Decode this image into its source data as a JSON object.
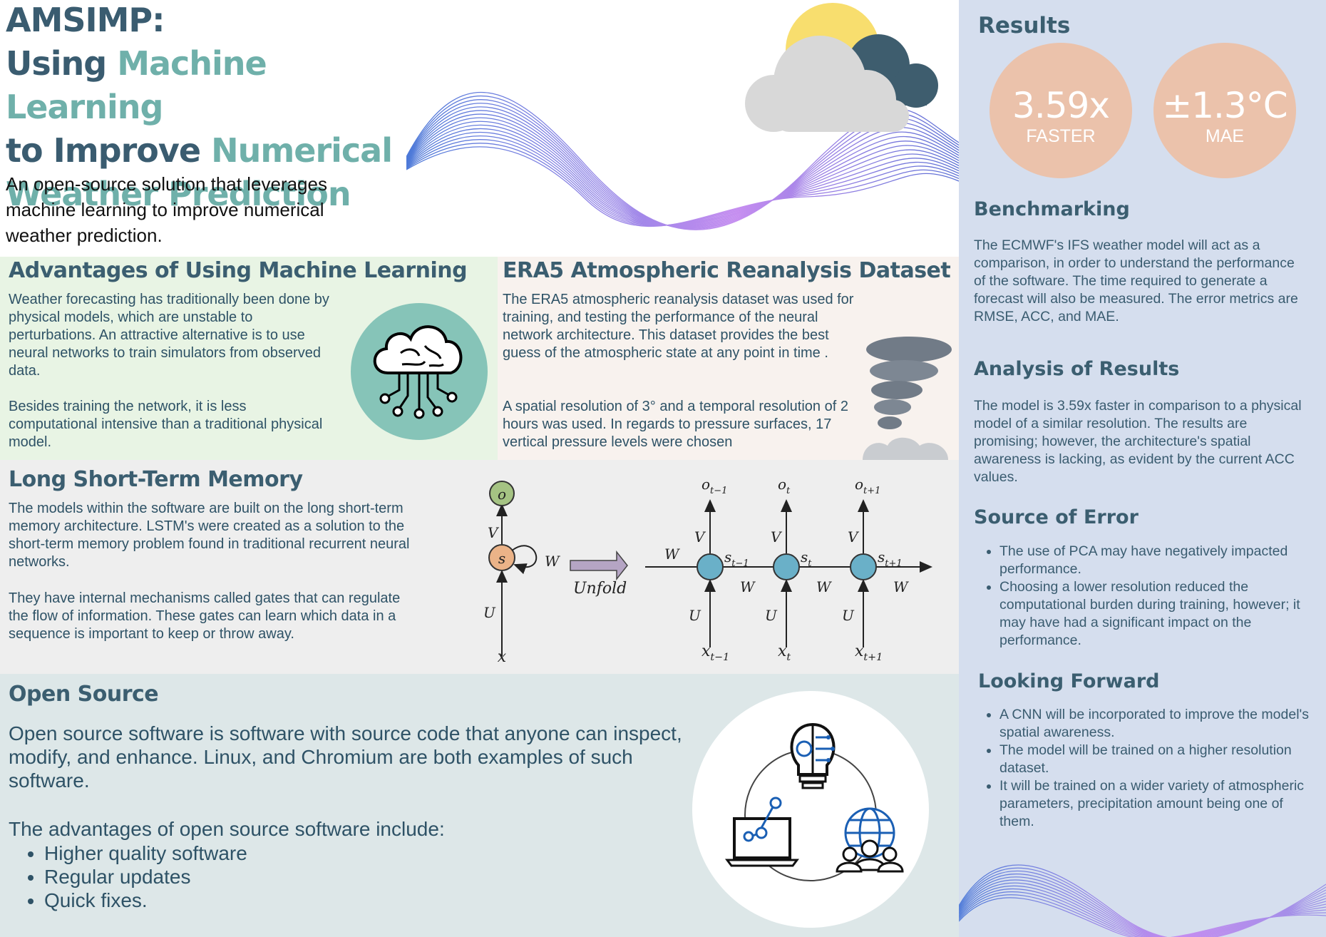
{
  "header": {
    "title_line1": "AMSIMP:",
    "title_line2_a": "Using ",
    "title_line2_b": "Machine Learning",
    "title_line3_a": "to Improve ",
    "title_line3_b": "Numerical",
    "title_line4": "Weather Prediction",
    "subtitle": "An open-source solution that leverages machine learning to improve numerical weather prediction."
  },
  "advantages": {
    "title": "Advantages of Using Machine Learning",
    "p1": "Weather forecasting has traditionally been done by physical models, which are unstable to perturbations. An attractive alternative is to use neural networks to train simulators from observed data.",
    "p2": "Besides training  the network, it is less computational intensive than a traditional physical model."
  },
  "era5": {
    "title": "ERA5 Atmospheric Reanalysis Dataset",
    "p1": "The ERA5 atmospheric reanalysis dataset was used for training, and testing the performance of the neural network architecture. This dataset provides the best guess of the atmospheric state at any point in time .",
    "p2": "A spatial resolution of 3° and a temporal resolution of 2 hours was used. In regards to pressure surfaces, 17 vertical pressure levels were chosen"
  },
  "lstm": {
    "title": "Long Short-Term Memory",
    "p1": "The models within the software are built on the long short-term memory architecture. LSTM's were created as a solution to the short-term memory problem found in traditional recurrent neural networks.",
    "p2": "They have internal mechanisms called gates that can regulate the flow of information. These gates can learn which data in a sequence is important to keep or throw away.",
    "diagram": {
      "o": "o",
      "s": "s",
      "x": "x",
      "V": "V",
      "U": "U",
      "W": "W",
      "unfold": "Unfold",
      "o_prev": "o",
      "o_prev_sub": "t−1",
      "o_cur": "o",
      "o_cur_sub": "t",
      "o_next": "o",
      "o_next_sub": "t+1",
      "s_prev": "s",
      "s_prev_sub": "t−1",
      "s_cur": "s",
      "s_cur_sub": "t",
      "s_next": "s",
      "s_next_sub": "t+1",
      "x_prev": "x",
      "x_prev_sub": "t−1",
      "x_cur": "x",
      "x_cur_sub": "t",
      "x_next": "x",
      "x_next_sub": "t+1"
    }
  },
  "open_source": {
    "title": "Open Source",
    "p1": "Open source software is software with source code that anyone can inspect, modify, and enhance. Linux, and Chromium are both examples of such software.",
    "p2": "The advantages of open source software include:",
    "items": [
      "Higher quality software",
      "Regular updates",
      "Quick fixes."
    ]
  },
  "sidebar": {
    "results_title": "Results",
    "badge1_value": "3.59x",
    "badge1_label": "FASTER",
    "badge2_value": "±1.3°C",
    "badge2_label": "MAE",
    "benchmarking_title": "Benchmarking",
    "benchmarking_text": "The ECMWF's IFS weather model will act as a comparison, in order to understand the performance of the software. The time required to generate a forecast will also be measured. The error metrics are RMSE, ACC, and MAE.",
    "analysis_title": "Analysis of Results",
    "analysis_text": "The model is 3.59x faster in comparison to a physical model of a similar resolution. The results are promising; however, the architecture's spatial awareness is lacking, as evident by the current ACC values.",
    "error_title": "Source of Error",
    "error_items": [
      "The use of PCA may have negatively impacted performance.",
      "Choosing a lower resolution reduced the computational burden during training, however; it may have had a significant impact on the performance."
    ],
    "forward_title": "Looking Forward",
    "forward_items": [
      "A CNN will be incorporated to improve the model's spatial awareness.",
      "The model will  be trained on a higher resolution dataset.",
      "It will be trained on a wider variety of atmospheric parameters, precipitation amount being one of them."
    ]
  },
  "colors": {
    "title_dark": "#3a5c70",
    "title_teal": "#6fb0aa",
    "sidebar_bg": "#d5deee",
    "badge": "#ebc2ab",
    "advantages_bg": "#e8f4e4",
    "era5_bg": "#f8f2ee",
    "lstm_bg": "#eeeeee",
    "opensource_bg": "#dde7e8"
  }
}
